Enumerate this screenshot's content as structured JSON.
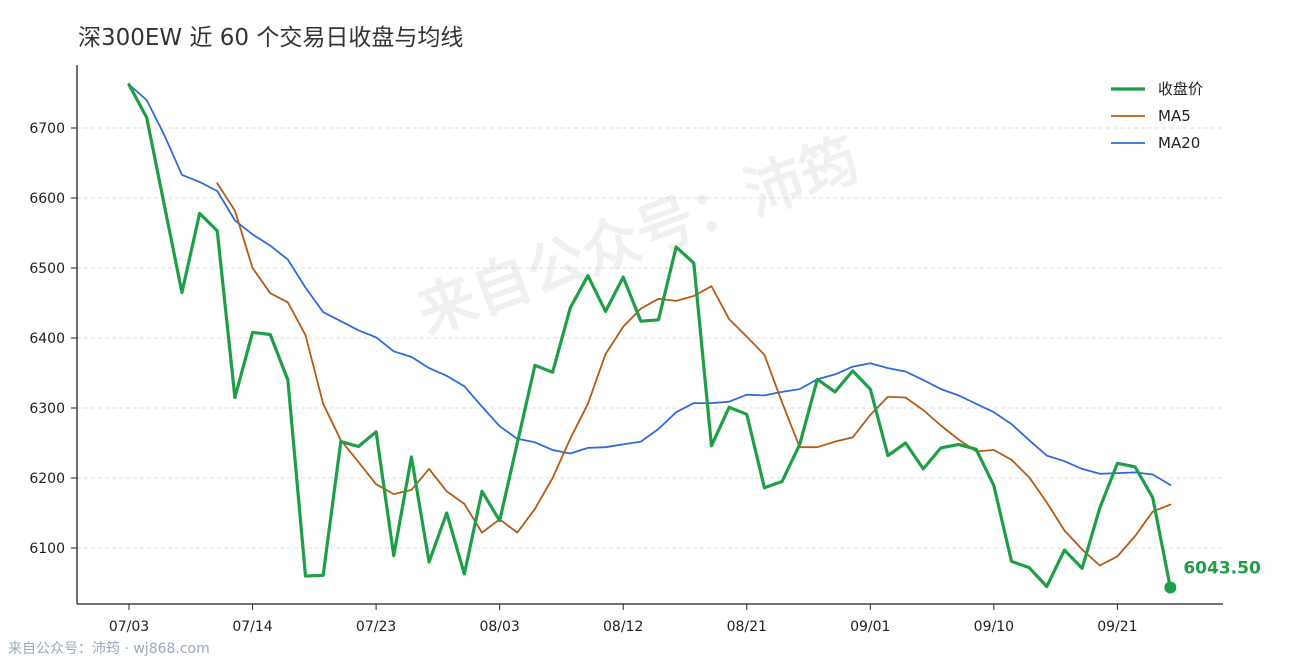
{
  "title": "深300EW 近 60 个交易日收盘与均线",
  "watermark": "来自公众号：沛筠",
  "footer": "来自公众号：沛筠 · wj868.com",
  "colors": {
    "close": "#1f9e48",
    "ma5": "#b85a12",
    "ma20": "#2f6bdc",
    "axis": "#222222",
    "grid": "#dddddd"
  },
  "chart_data": {
    "type": "line",
    "title": "深300EW 近 60 个交易日收盘与均线",
    "xlabel": "",
    "ylabel": "",
    "ylim": [
      6020,
      6790
    ],
    "yticks": [
      6100,
      6200,
      6300,
      6400,
      6500,
      6600,
      6700
    ],
    "xtick_labels": [
      "07/03",
      "07/14",
      "07/23",
      "08/03",
      "08/12",
      "08/21",
      "09/01",
      "09/10",
      "09/21"
    ],
    "xtick_index": [
      0,
      7,
      14,
      21,
      28,
      35,
      42,
      49,
      56
    ],
    "grid": "horizontal dashed",
    "legend_position": "top-right",
    "last_value_label": "6043.50",
    "series": [
      {
        "name": "收盘价",
        "values": [
          6762,
          6715,
          6590,
          6465,
          6578,
          6553,
          6315,
          6408,
          6405,
          6340,
          6060,
          6061,
          6252,
          6245,
          6266,
          6089,
          6230,
          6080,
          6150,
          6063,
          6181,
          6139,
          6250,
          6361,
          6351,
          6443,
          6489,
          6438,
          6487,
          6424,
          6426,
          6530,
          6507,
          6246,
          6301,
          6291,
          6186,
          6195,
          6248,
          6341,
          6323,
          6353,
          6327,
          6232,
          6250,
          6213,
          6243,
          6248,
          6241,
          6189,
          6081,
          6072,
          6045,
          6097,
          6071,
          6157,
          6221,
          6216,
          6172,
          6043.5
        ]
      },
      {
        "name": "MA5",
        "values": [
          6762,
          null,
          null,
          null,
          null,
          6621,
          6582,
          6500,
          6464,
          6451,
          6404,
          6306,
          6254,
          6223,
          6191,
          6177,
          6183,
          6213,
          6181,
          6163,
          6122,
          6141,
          6122,
          6156,
          6200,
          6256,
          6306,
          6377,
          6416,
          6442,
          6456,
          6453,
          6460,
          6474,
          6427,
          6402,
          6376,
          6308,
          6244,
          6244,
          6252,
          6258,
          6290,
          6316,
          6315,
          6297,
          6275,
          6255,
          6238,
          6240,
          6226,
          6201,
          6165,
          6125,
          6098,
          6075,
          6088,
          6117,
          6152,
          6162
        ]
      },
      {
        "name": "MA20",
        "values": [
          6762,
          6740,
          6690,
          6633,
          6623,
          6610,
          6568,
          6548,
          6532,
          6512,
          6472,
          6437,
          6424,
          6411,
          6401,
          6381,
          6373,
          6357,
          6346,
          6331,
          6302,
          6274,
          6256,
          6251,
          6240,
          6235,
          6243,
          6244,
          6248,
          6252,
          6270,
          6294,
          6307,
          6307,
          6309,
          6319,
          6318,
          6323,
          6327,
          6341,
          6348,
          6359,
          6364,
          6357,
          6352,
          6340,
          6327,
          6318,
          6306,
          6294,
          6277,
          6254,
          6232,
          6224,
          6213,
          6206,
          6207,
          6208,
          6205,
          6190
        ]
      }
    ]
  }
}
